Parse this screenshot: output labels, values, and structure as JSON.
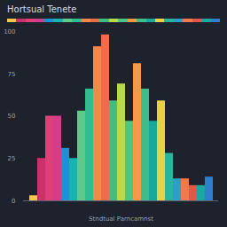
{
  "chart_data": {
    "type": "bar",
    "title": "Hortsual Tenete",
    "x_label": "Stndtual Parncamnst",
    "categories": [
      null,
      null,
      null,
      null,
      null,
      null,
      null,
      null,
      null,
      null,
      null,
      null,
      null,
      null,
      null,
      null,
      null,
      null,
      null,
      null,
      null,
      null,
      null
    ],
    "values": [
      3,
      25,
      50,
      50,
      31,
      25,
      53,
      66,
      91,
      98,
      59,
      69,
      47,
      81,
      66,
      47,
      59,
      28,
      13,
      13,
      9,
      9,
      14
    ],
    "colors": [
      "#f2c84b",
      "#c8336e",
      "#e0407a",
      "#d43d8a",
      "#1f8fd6",
      "#17b3b0",
      "#5fc98a",
      "#2fbf8f",
      "#f0894a",
      "#ef6b4a",
      "#3fbf7f",
      "#b8d94a",
      "#4cc48a",
      "#f49a45",
      "#3dbd8c",
      "#1aa89a",
      "#e8d04a",
      "#2ab59a",
      "#2aa0c8",
      "#f07a4a",
      "#e0584a",
      "#18a8a0",
      "#2f7fd0"
    ],
    "ylim": [
      0,
      100
    ],
    "yticks": [
      0,
      25,
      50,
      75,
      100
    ],
    "grid": false
  }
}
